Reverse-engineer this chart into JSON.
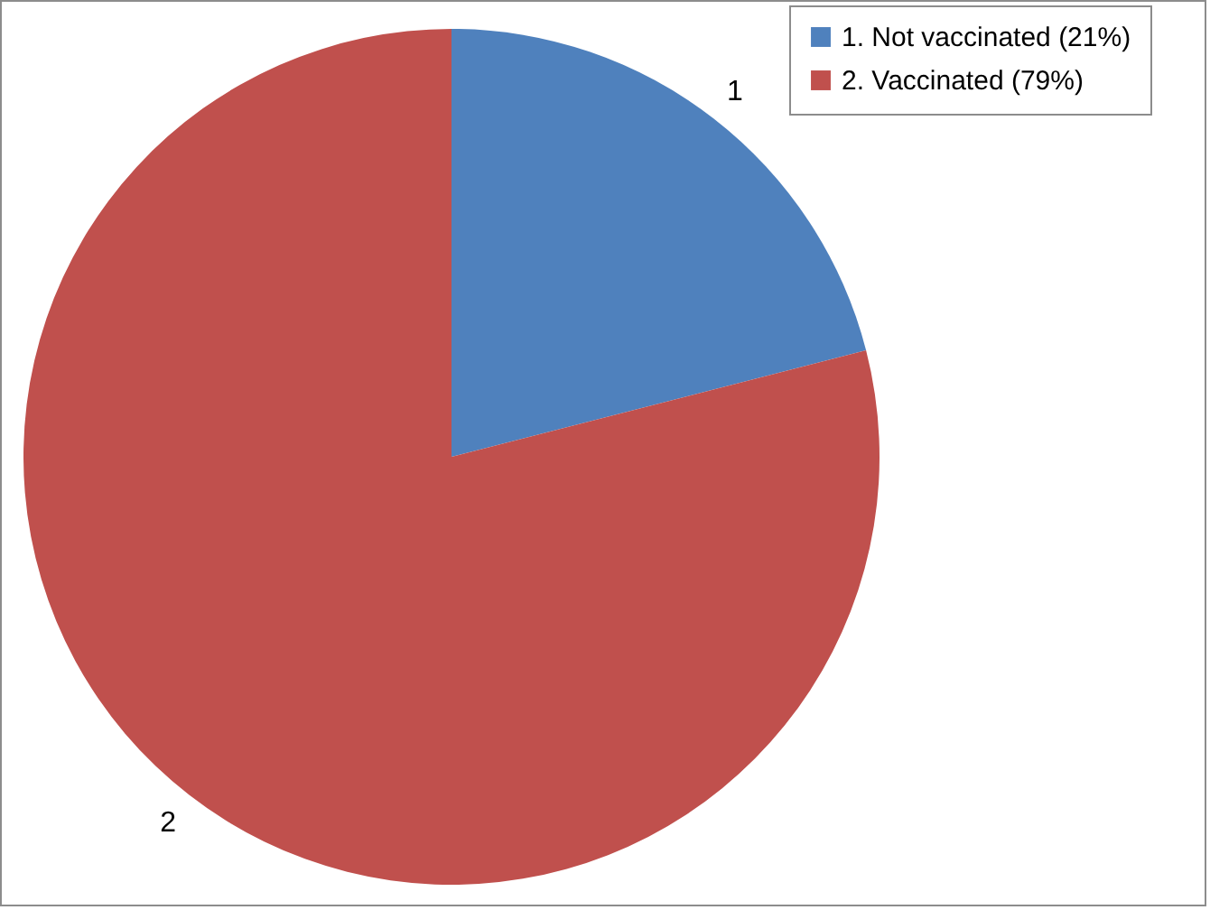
{
  "chart_data": {
    "type": "pie",
    "categories": [
      "1. Not vaccinated (21%)",
      "2. Vaccinated (79%)"
    ],
    "values": [
      21,
      79
    ],
    "colors": [
      "#4f81bd",
      "#c0504d"
    ],
    "annotations": [
      "1",
      "2"
    ],
    "legend": "top right"
  }
}
